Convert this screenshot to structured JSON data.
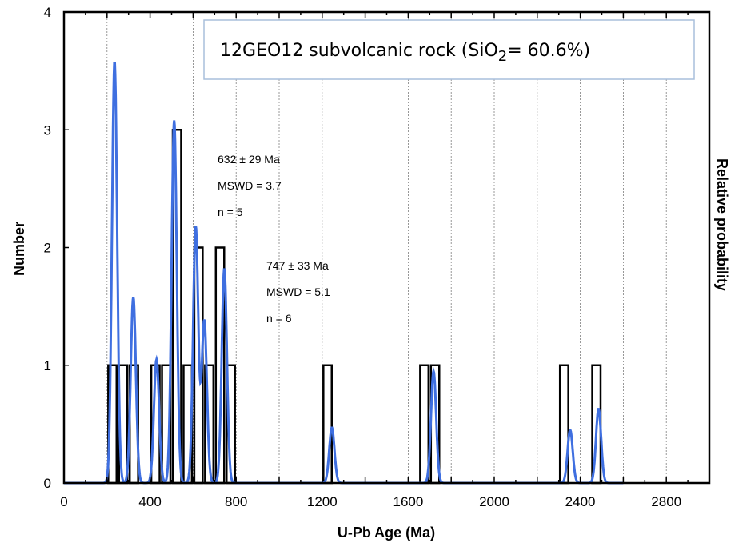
{
  "chart_data": {
    "type": "histogram with probability density curve",
    "title": {
      "prefix": "12GEO12 subvolcanic rock (SiO",
      "subscript": "2",
      "suffix": "= 60.6%)"
    },
    "xlabel": "U-Pb Age (Ma)",
    "ylabel": "Number",
    "y2label": "Relative probability",
    "xlim": [
      0,
      3000
    ],
    "ylim": [
      0,
      4
    ],
    "x_ticks": [
      "0",
      "400",
      "800",
      "1200",
      "1600",
      "2000",
      "2400",
      "2800"
    ],
    "y_ticks": [
      "0",
      "1",
      "2",
      "3",
      "4"
    ],
    "grid": "vertical dashed at 200 Ma steps",
    "bin_width": 50,
    "histogram": [
      {
        "start": 200,
        "count": 1
      },
      {
        "start": 250,
        "count": 1
      },
      {
        "start": 300,
        "count": 1
      },
      {
        "start": 400,
        "count": 1
      },
      {
        "start": 450,
        "count": 1
      },
      {
        "start": 500,
        "count": 3
      },
      {
        "start": 550,
        "count": 1
      },
      {
        "start": 600,
        "count": 2
      },
      {
        "start": 650,
        "count": 1
      },
      {
        "start": 700,
        "count": 2
      },
      {
        "start": 750,
        "count": 1
      },
      {
        "start": 1200,
        "count": 1
      },
      {
        "start": 1650,
        "count": 1
      },
      {
        "start": 1700,
        "count": 1
      },
      {
        "start": 2300,
        "count": 1
      },
      {
        "start": 2450,
        "count": 1
      }
    ],
    "probability_peaks": [
      {
        "age": 235,
        "height": 3.58
      },
      {
        "age": 322,
        "height": 1.58
      },
      {
        "age": 430,
        "height": 1.05
      },
      {
        "age": 512,
        "height": 3.08
      },
      {
        "age": 612,
        "height": 2.18
      },
      {
        "age": 652,
        "height": 1.38
      },
      {
        "age": 745,
        "height": 1.82
      },
      {
        "age": 1245,
        "height": 0.47
      },
      {
        "age": 1718,
        "height": 0.95
      },
      {
        "age": 2353,
        "height": 0.45
      },
      {
        "age": 2485,
        "height": 0.63
      }
    ],
    "annotations": [
      {
        "lines": [
          "632  ± 29 Ma",
          "MSWD = 3.7",
          "n = 5"
        ]
      },
      {
        "lines": [
          "747 ± 33 Ma",
          "MSWD = 5.1",
          "n = 6"
        ]
      }
    ],
    "colors": {
      "curve": "#3f6fe0",
      "bars": "#000000",
      "grid": "#7f7f7f",
      "title_border": "#a9bfdc"
    }
  }
}
